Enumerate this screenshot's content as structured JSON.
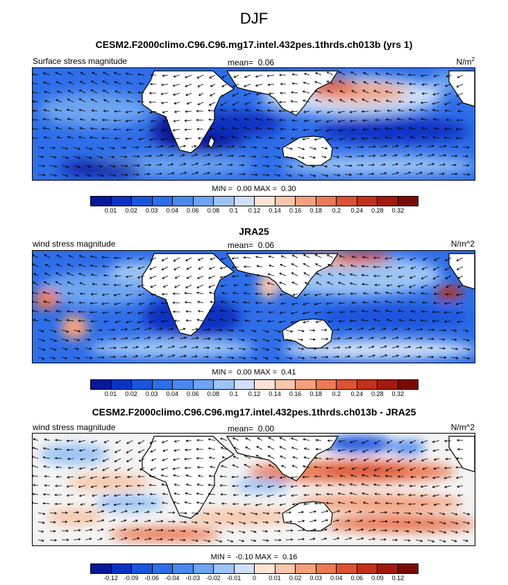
{
  "page": {
    "title": "DJF"
  },
  "panels": [
    {
      "title": "CESM2.F2000climo.C96.C96.mg17.intel.432pes.1thrds.ch013b (yrs 1)",
      "left_label": "Surface stress magnitude",
      "mean_label": "mean=",
      "mean_value": "0.06",
      "units_main": "N/m",
      "units_sup": "2",
      "min_label": "MIN =",
      "min_value": "0.00",
      "max_label": "MAX =",
      "max_value": "0.30",
      "colorbar": {
        "ticks": [
          "0.01",
          "0.02",
          "0.03",
          "0.04",
          "0.06",
          "0.08",
          "0.1",
          "0.12",
          "0.14",
          "0.16",
          "0.18",
          "0.2",
          "0.24",
          "0.28",
          "0.32"
        ],
        "colors": [
          "#08189a",
          "#0b33c2",
          "#1b55dd",
          "#2e6ee8",
          "#4a88ee",
          "#6ea4f0",
          "#9cc4f5",
          "#cfe0f8",
          "#fbe3d6",
          "#f8c6aa",
          "#f3a07c",
          "#eb7a56",
          "#dc5232",
          "#c2311d",
          "#a01a0e",
          "#7a0a06"
        ]
      },
      "chart_data": {
        "type": "heatmap",
        "field": "Surface stress magnitude",
        "season": "DJF",
        "units": "N/m2",
        "mean": 0.06,
        "min": 0.0,
        "max": 0.3,
        "levels": [
          0.01,
          0.02,
          0.03,
          0.04,
          0.06,
          0.08,
          0.1,
          0.12,
          0.14,
          0.16,
          0.18,
          0.2,
          0.24,
          0.28,
          0.32
        ],
        "overlay": "wind stress vectors"
      }
    },
    {
      "title": "JRA25",
      "left_label": "wind stress magnitude",
      "mean_label": "mean=",
      "mean_value": "0.06",
      "units_main": "N/m^2",
      "units_sup": "",
      "min_label": "MIN =",
      "min_value": "0.00",
      "max_label": "MAX =",
      "max_value": "0.41",
      "colorbar": {
        "ticks": [
          "0.01",
          "0.02",
          "0.03",
          "0.04",
          "0.06",
          "0.08",
          "0.1",
          "0.12",
          "0.14",
          "0.16",
          "0.18",
          "0.2",
          "0.24",
          "0.28",
          "0.32"
        ],
        "colors": [
          "#08189a",
          "#0b33c2",
          "#1b55dd",
          "#2e6ee8",
          "#4a88ee",
          "#6ea4f0",
          "#9cc4f5",
          "#cfe0f8",
          "#fbe3d6",
          "#f8c6aa",
          "#f3a07c",
          "#eb7a56",
          "#dc5232",
          "#c2311d",
          "#a01a0e",
          "#7a0a06"
        ]
      },
      "chart_data": {
        "type": "heatmap",
        "field": "wind stress magnitude",
        "season": "DJF",
        "units": "N/m^2",
        "mean": 0.06,
        "min": 0.0,
        "max": 0.41,
        "levels": [
          0.01,
          0.02,
          0.03,
          0.04,
          0.06,
          0.08,
          0.1,
          0.12,
          0.14,
          0.16,
          0.18,
          0.2,
          0.24,
          0.28,
          0.32
        ],
        "overlay": "wind stress vectors"
      }
    },
    {
      "title": "CESM2.F2000climo.C96.C96.mg17.intel.432pes.1thrds.ch013b - JRA25",
      "left_label": "wind stress magnitude",
      "mean_label": "mean=",
      "mean_value": "0.00",
      "units_main": "N/m^2",
      "units_sup": "",
      "min_label": "MIN =",
      "min_value": "-0.10",
      "max_label": "MAX =",
      "max_value": "0.16",
      "colorbar": {
        "ticks": [
          "-0.12",
          "-0.09",
          "-0.06",
          "-0.04",
          "-0.03",
          "-0.02",
          "-0.01",
          "0",
          "0.01",
          "0.02",
          "0.03",
          "0.04",
          "0.06",
          "0.09",
          "0.12"
        ],
        "colors": [
          "#08189a",
          "#0b33c2",
          "#1b55dd",
          "#2e6ee8",
          "#4a88ee",
          "#6ea4f0",
          "#9cc4f5",
          "#cfe0f8",
          "#fbe3d6",
          "#f8c6aa",
          "#f3a07c",
          "#eb7a56",
          "#dc5232",
          "#c2311d",
          "#a01a0e",
          "#7a0a06"
        ]
      },
      "chart_data": {
        "type": "heatmap",
        "field": "wind stress magnitude difference (model - JRA25)",
        "season": "DJF",
        "units": "N/m^2",
        "mean": 0.0,
        "min": -0.1,
        "max": 0.16,
        "levels": [
          -0.12,
          -0.09,
          -0.06,
          -0.04,
          -0.03,
          -0.02,
          -0.01,
          0,
          0.01,
          0.02,
          0.03,
          0.04,
          0.06,
          0.09,
          0.12
        ],
        "overlay": "wind stress vector differences"
      }
    }
  ]
}
